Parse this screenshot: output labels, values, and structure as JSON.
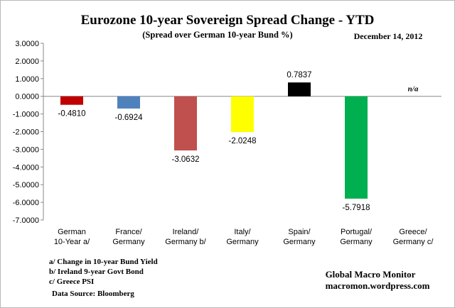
{
  "chart_data": {
    "type": "bar",
    "title": "Eurozone 10-year Sovereign Spread Change - YTD",
    "subtitle": "(Spread over German 10-year Bund %)",
    "date": "December 14,  2012",
    "categories": [
      [
        "German",
        "10-Year a/"
      ],
      [
        "France/",
        "Germany"
      ],
      [
        "Ireland/",
        "Germany b/"
      ],
      [
        "Italy/",
        "Germany"
      ],
      [
        "Spain/",
        "Germany"
      ],
      [
        "Portugal/",
        "Germany"
      ],
      [
        "Greece/",
        "Germany c/"
      ]
    ],
    "values": [
      -0.481,
      -0.6924,
      -3.0632,
      -2.0248,
      0.7837,
      -5.7918,
      null
    ],
    "value_labels": [
      "-0.4810",
      "-0.6924",
      "-3.0632",
      "-2.0248",
      "0.7837",
      "-5.7918",
      "n/a"
    ],
    "colors": [
      "#c00000",
      "#4f81bd",
      "#c0504d",
      "#ffff00",
      "#000000",
      "#00b050",
      "#ffffff"
    ],
    "yticks": [
      3,
      2,
      1,
      0,
      -1,
      -2,
      -3,
      -4,
      -5,
      -6,
      -7
    ],
    "ytick_labels": [
      "3.0000",
      "2.0000",
      "1.0000",
      "0.0000",
      "-1.0000",
      "-2.0000",
      "-3.0000",
      "-4.0000",
      "-5.0000",
      "-6.0000",
      "-7.0000"
    ],
    "ylim": [
      -7,
      3
    ],
    "grid": false,
    "footnotes": [
      "a/  Change in 10-year Bund Yield",
      "b/  Ireland 9-year Govt Bond",
      "c/  Greece PSI"
    ],
    "source": "Data Source:  Bloomberg",
    "credit": [
      "Global Macro Monitor",
      "macromon.wordpress.com"
    ]
  }
}
